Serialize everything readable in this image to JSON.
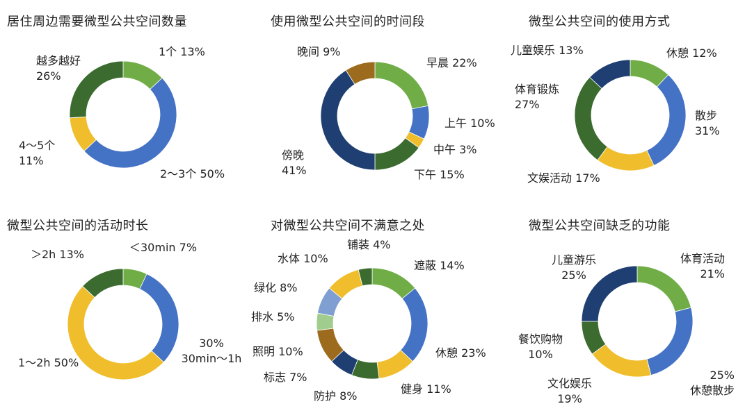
{
  "colors": {
    "green": "#70AD47",
    "blue": "#4472C4",
    "yellow": "#F0BE2C",
    "darkgreen": "#3B6B2E",
    "navy": "#1F3F72",
    "brown": "#9C6B1D",
    "lightblue": "#7F9FD3",
    "lightgreen": "#A0CD8E"
  },
  "chart_data": [
    {
      "type": "pie",
      "title": "居住周边需要微型公共空间数量",
      "slices": [
        {
          "label": "1个",
          "value": 13,
          "value_text": "13%",
          "color": "green"
        },
        {
          "label": "2～3个",
          "value": 50,
          "value_text": "50%",
          "color": "blue"
        },
        {
          "label": "4～5个",
          "value": 11,
          "value_text": "11%",
          "color": "yellow"
        },
        {
          "label": "越多越好",
          "value": 26,
          "value_text": "26%",
          "color": "darkgreen"
        }
      ]
    },
    {
      "type": "pie",
      "title": "使用微型公共空间的时间段",
      "slices": [
        {
          "label": "早晨",
          "value": 22,
          "value_text": "22%",
          "color": "green"
        },
        {
          "label": "上午",
          "value": 10,
          "value_text": "10%",
          "color": "blue"
        },
        {
          "label": "中午",
          "value": 3,
          "value_text": "3%",
          "color": "yellow"
        },
        {
          "label": "下午",
          "value": 15,
          "value_text": "15%",
          "color": "darkgreen"
        },
        {
          "label": "傍晚",
          "value": 41,
          "value_text": "41%",
          "color": "navy"
        },
        {
          "label": "晚间",
          "value": 9,
          "value_text": "9%",
          "color": "brown"
        }
      ]
    },
    {
      "type": "pie",
      "title": "微型公共空间的使用方式",
      "slices": [
        {
          "label": "休憩",
          "value": 12,
          "value_text": "12%",
          "color": "green"
        },
        {
          "label": "散步",
          "value": 31,
          "value_text": "31%",
          "color": "blue"
        },
        {
          "label": "文娱活动",
          "value": 17,
          "value_text": "17%",
          "color": "yellow"
        },
        {
          "label": "体育锻炼",
          "value": 27,
          "value_text": "27%",
          "color": "darkgreen"
        },
        {
          "label": "儿童娱乐",
          "value": 13,
          "value_text": "13%",
          "color": "navy"
        }
      ]
    },
    {
      "type": "pie",
      "title": "微型公共空间的活动时长",
      "slices": [
        {
          "label": "＜30min",
          "value": 7,
          "value_text": "7%",
          "color": "green"
        },
        {
          "label": "30min～1h",
          "value": 30,
          "value_text": "30%",
          "color": "blue"
        },
        {
          "label": "1～2h",
          "value": 50,
          "value_text": "50%",
          "color": "yellow"
        },
        {
          "label": "＞2h",
          "value": 13,
          "value_text": "13%",
          "color": "darkgreen"
        }
      ]
    },
    {
      "type": "pie",
      "title": "对微型公共空间不满意之处",
      "slices": [
        {
          "label": "遮蔽",
          "value": 14,
          "value_text": "14%",
          "color": "green"
        },
        {
          "label": "休憩",
          "value": 23,
          "value_text": "23%",
          "color": "blue"
        },
        {
          "label": "健身",
          "value": 11,
          "value_text": "11%",
          "color": "yellow"
        },
        {
          "label": "防护",
          "value": 8,
          "value_text": "8%",
          "color": "darkgreen"
        },
        {
          "label": "标志",
          "value": 7,
          "value_text": "7%",
          "color": "navy"
        },
        {
          "label": "照明",
          "value": 10,
          "value_text": "10%",
          "color": "brown"
        },
        {
          "label": "排水",
          "value": 5,
          "value_text": "5%",
          "color": "lightgreen"
        },
        {
          "label": "绿化",
          "value": 8,
          "value_text": "8%",
          "color": "lightblue"
        },
        {
          "label": "水体",
          "value": 10,
          "value_text": "10%",
          "color": "yellow"
        },
        {
          "label": "铺装",
          "value": 4,
          "value_text": "4%",
          "color": "darkgreen"
        }
      ]
    },
    {
      "type": "pie",
      "title": "微型公共空间缺乏的功能",
      "slices": [
        {
          "label": "体育活动",
          "value": 21,
          "value_text": "21%",
          "color": "green"
        },
        {
          "label": "休憩散步",
          "value": 25,
          "value_text": "25%",
          "color": "blue"
        },
        {
          "label": "文化娱乐",
          "value": 19,
          "value_text": "19%",
          "color": "yellow"
        },
        {
          "label": "餐饮购物",
          "value": 10,
          "value_text": "10%",
          "color": "darkgreen"
        },
        {
          "label": "儿童游乐",
          "value": 25,
          "value_text": "25%",
          "color": "navy"
        }
      ]
    }
  ]
}
